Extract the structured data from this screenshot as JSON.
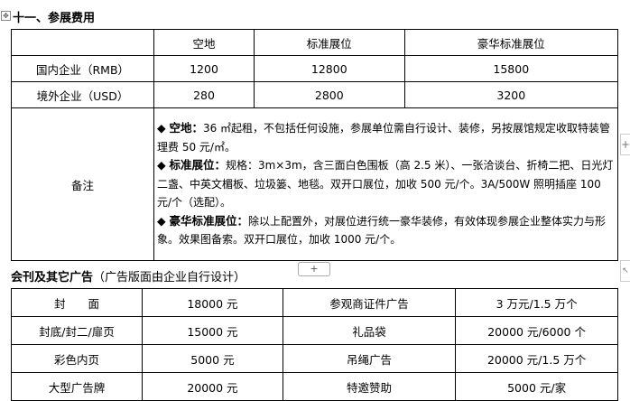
{
  "section1": {
    "title": "十一、参展费用",
    "headers": [
      "",
      "空地",
      "标准展位",
      "豪华标准展位"
    ],
    "rows": [
      [
        "国内企业（RMB）",
        "1200",
        "12800",
        "15800"
      ],
      [
        "境外企业（USD）",
        "280",
        "2800",
        "3200"
      ]
    ],
    "notes_label": "备注",
    "notes": [
      {
        "bullet": "◆",
        "label": "空地：",
        "text": "36 ㎡起租，不包括任何设施，参展单位需自行设计、装修，另按展馆规定收取特装管理费 50 元/㎡。"
      },
      {
        "bullet": "◆",
        "label": "标准展位：",
        "text": "规格：3m×3m，含三面白色围板（高 2.5 米）、一张洽谈台、折椅二把、日光灯二盏、中英文楣板、垃圾篓、地毯。双开口展位，加收 500 元/个。3A/500W 照明插座 100 元/个（选配）。"
      },
      {
        "bullet": "◆",
        "label": "豪华标准展位：",
        "text": "除以上配置外，对展位进行统一豪华装修，有效体现参展企业整体实力与形象。效果图备索。双开口展位，加收 1000 元/个。"
      }
    ]
  },
  "section2": {
    "title": "会刊及其它广告",
    "subtitle": "（广告版面由企业自行设计）",
    "rows": [
      [
        "封　　面",
        "18000 元",
        "参观商证件广告",
        "3 万元/1.5 万个"
      ],
      [
        "封底/封二/扉页",
        "15000 元",
        "礼品袋",
        "20000 元/6000 个"
      ],
      [
        "彩色内页",
        "5000 元",
        "吊绳广告",
        "20000 元/1.5 万个"
      ],
      [
        "大型广告牌",
        "20000 元",
        "特邀赞助",
        "5000 元/家"
      ]
    ]
  },
  "controls": {
    "add": "+",
    "anchor": "✥",
    "side_add": "+",
    "resize": "↖"
  }
}
